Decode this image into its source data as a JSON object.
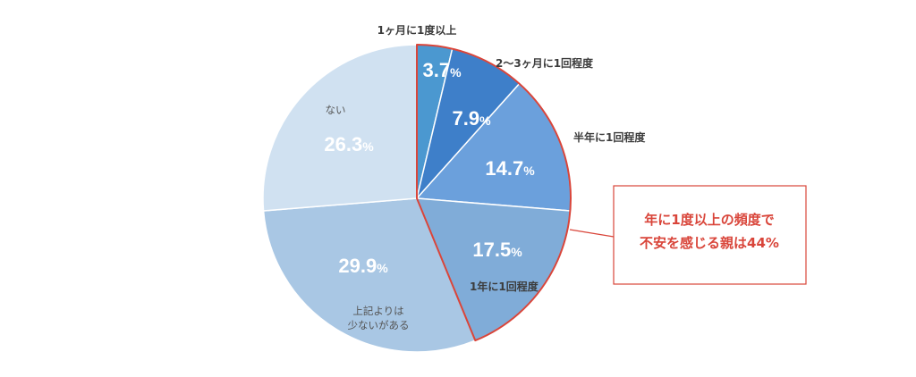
{
  "chart_data": {
    "type": "pie",
    "slices": [
      {
        "label_lines": [
          "1ヶ月に1度以上"
        ],
        "value": 3.7,
        "value_label": "3.7%",
        "color": "#4b98d0"
      },
      {
        "label_lines": [
          "2〜3ヶ月に1回程度"
        ],
        "value": 7.9,
        "value_label": "7.9%",
        "color": "#3e7fc9"
      },
      {
        "label_lines": [
          "半年に1回程度"
        ],
        "value": 14.7,
        "value_label": "14.7%",
        "color": "#6ba0dc"
      },
      {
        "label_lines": [
          "1年に1回程度"
        ],
        "value": 17.5,
        "value_label": "17.5%",
        "color": "#80acd8"
      },
      {
        "label_lines": [
          "上記よりは",
          "少ないがある"
        ],
        "value": 29.9,
        "value_label": "29.9%",
        "color": "#a9c7e4"
      },
      {
        "label_lines": [
          "ない"
        ],
        "value": 26.3,
        "value_label": "26.3%",
        "color": "#d0e1f1"
      }
    ],
    "highlight": {
      "slice_indices": [
        0,
        1,
        2,
        3
      ],
      "color": "#d9453a"
    },
    "annotation": {
      "lines": [
        "年に1度以上の頻度で",
        "不安を感じる親は44%"
      ],
      "color": "#d9453a"
    }
  }
}
